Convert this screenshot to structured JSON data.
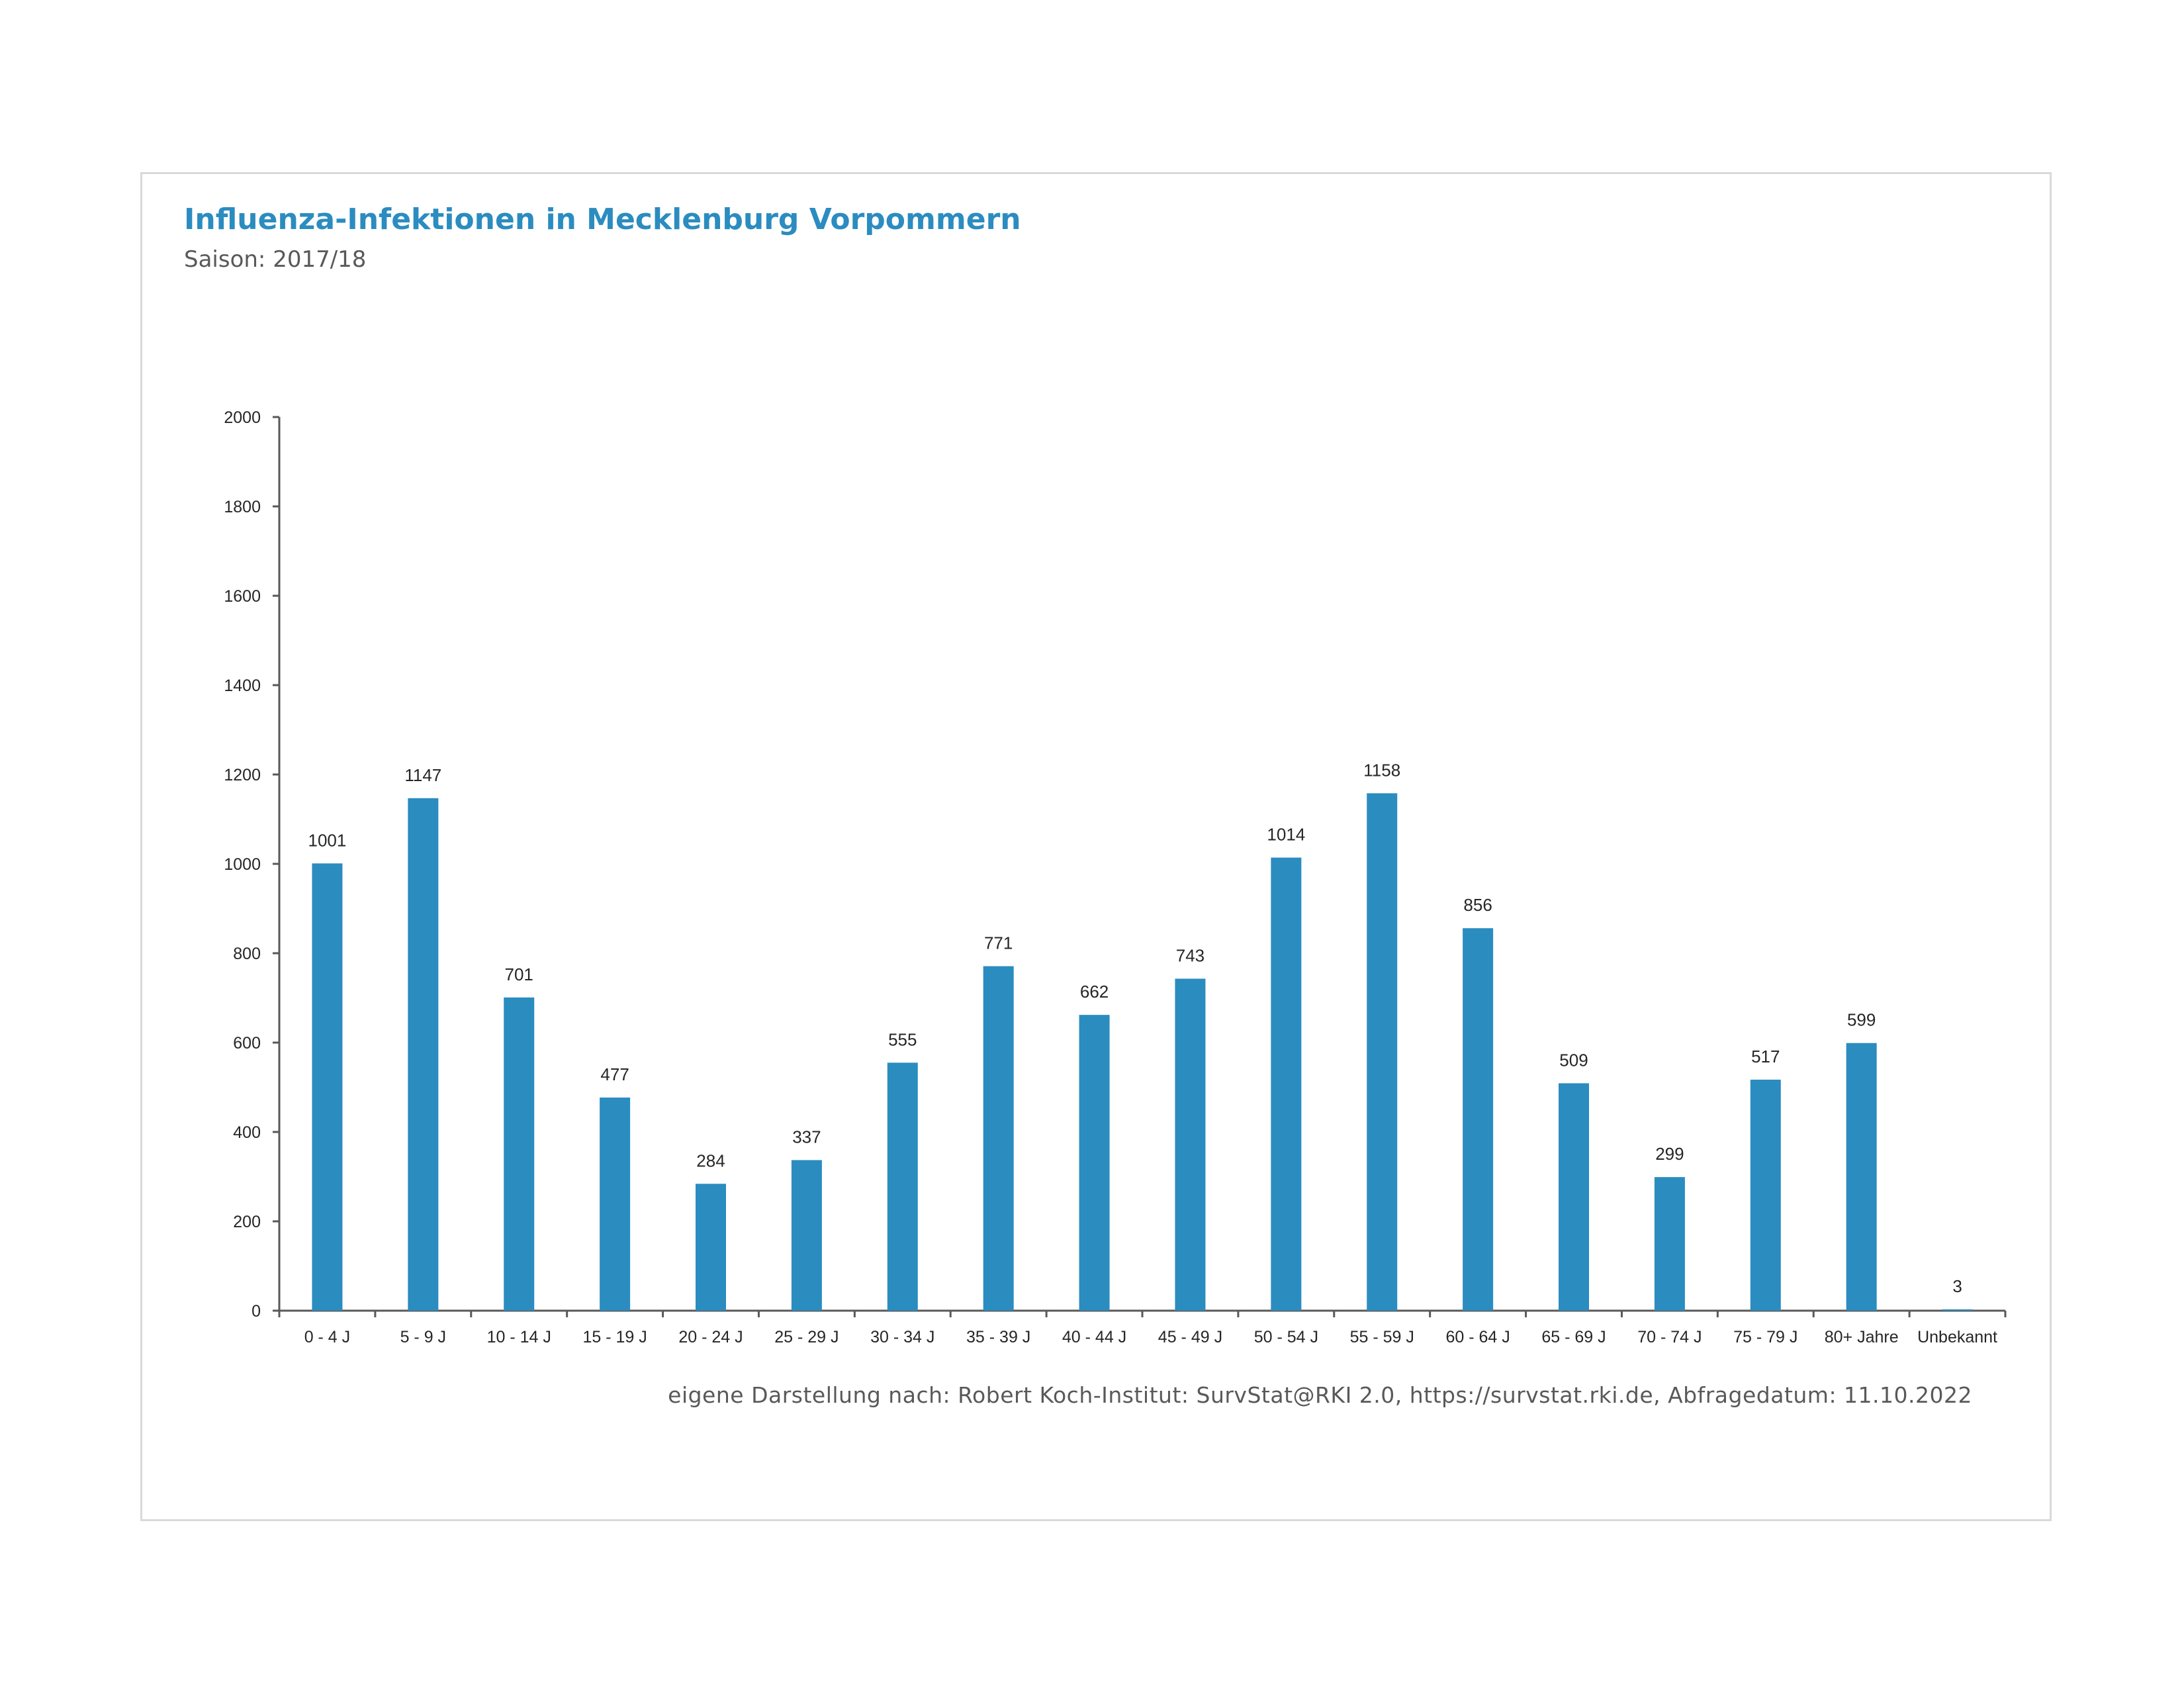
{
  "page": {
    "title": "Influenza-Infektionen in Mecklenburg Vorpommern",
    "subtitle": "Saison: 2017/18",
    "source": "eigene Darstellung nach: Robert Koch-Institut: SurvStat@RKI 2.0, https://survstat.rki.de, Abfragedatum: 11.10.2022"
  },
  "chart_data": {
    "type": "bar",
    "title": "Influenza-Infektionen in Mecklenburg Vorpommern",
    "subtitle": "Saison: 2017/18",
    "xlabel": "",
    "ylabel": "",
    "categories": [
      "0 - 4 J",
      "5 - 9 J",
      "10 - 14 J",
      "15 - 19 J",
      "20 - 24 J",
      "25 - 29 J",
      "30 - 34 J",
      "35 - 39 J",
      "40 - 44 J",
      "45 - 49 J",
      "50 - 54 J",
      "55 - 59 J",
      "60 - 64 J",
      "65 - 69 J",
      "70 - 74 J",
      "75 - 79 J",
      "80+ Jahre",
      "Unbekannt"
    ],
    "values": [
      1001,
      1147,
      701,
      477,
      284,
      337,
      555,
      771,
      662,
      743,
      1014,
      1158,
      856,
      509,
      299,
      517,
      599,
      3
    ],
    "ylim": [
      0,
      2000
    ],
    "yticks": [
      0,
      200,
      400,
      600,
      800,
      1000,
      1200,
      1400,
      1600,
      1800,
      2000
    ],
    "grid": false,
    "legend": "none",
    "bar_color": "#2b8cc0",
    "data_labels": true
  }
}
